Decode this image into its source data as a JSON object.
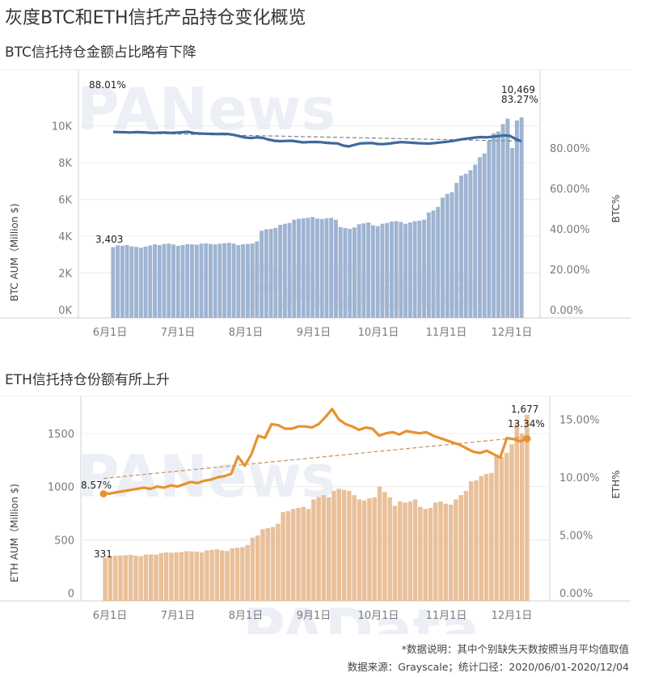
{
  "page": {
    "title": "灰度BTC和ETH信托产品持仓变化概览",
    "footer_note": "*数据说明：其中个别缺失天数按照当月平均值取值",
    "footer_source": "数据来源：Grayscale；统计口径：2020/06/01-2020/12/04",
    "watermarks": [
      "PANews",
      "PAData"
    ]
  },
  "colors": {
    "btc_bar": "#9fb4d2",
    "btc_line": "#3d6a9c",
    "eth_bar": "#e9c09a",
    "eth_line": "#e8922f",
    "grid": "#ececec",
    "axis": "#d0d0d0"
  },
  "chart_data": [
    {
      "type": "bar+line",
      "title": "BTC信托持仓金额占比略有下降",
      "xlabel": "",
      "ylabel": "BTC AUM（Million $)",
      "ylabel_right": "BTC%",
      "x_ticks": [
        "6月1日",
        "7月1日",
        "8月1日",
        "9月1日",
        "10月1日",
        "11月1日",
        "12月1日"
      ],
      "y_ticks": [
        "0K",
        "2K",
        "4K",
        "6K",
        "8K",
        "10K"
      ],
      "y_ticks_right": [
        "0.00%",
        "20.00%",
        "40.00%",
        "60.00%",
        "80.00%"
      ],
      "ylim": [
        0,
        11000
      ],
      "ylim_right": [
        0,
        100
      ],
      "annotations": {
        "start_aum": "3,403",
        "end_aum": "10,469",
        "start_pct": "88.01%",
        "end_pct": "83.27%"
      },
      "series": [
        {
          "name": "BTC AUM (Million $)",
          "kind": "bar",
          "values": [
            3403,
            3500,
            3480,
            3520,
            3450,
            3420,
            3380,
            3440,
            3500,
            3560,
            3520,
            3580,
            3600,
            3550,
            3480,
            3520,
            3570,
            3560,
            3540,
            3600,
            3610,
            3580,
            3560,
            3590,
            3620,
            3640,
            3600,
            3520,
            3560,
            3580,
            3600,
            3720,
            4300,
            4380,
            4400,
            4450,
            4620,
            4680,
            4720,
            4900,
            4950,
            4980,
            5000,
            5050,
            4960,
            4940,
            4980,
            5000,
            4900,
            4500,
            4450,
            4400,
            4480,
            4650,
            4700,
            4750,
            4600,
            4550,
            4680,
            4720,
            4800,
            4820,
            4780,
            4680,
            4750,
            4820,
            4850,
            4900,
            5300,
            5400,
            5600,
            6100,
            6300,
            6400,
            6900,
            7300,
            7400,
            7600,
            7900,
            8300,
            8500,
            9200,
            9600,
            9700,
            10100,
            10400,
            8800,
            10300,
            10469
          ]
        },
        {
          "name": "BTC%",
          "kind": "line",
          "values": [
            88.01,
            87.9,
            87.8,
            87.7,
            87.9,
            87.8,
            87.6,
            87.5,
            87.6,
            87.7,
            87.5,
            87.6,
            87.8,
            88.0,
            87.4,
            87.2,
            87.1,
            87.0,
            86.9,
            87.0,
            86.9,
            86.5,
            85.8,
            85.2,
            84.9,
            85.3,
            85.0,
            84.2,
            83.6,
            83.4,
            83.5,
            83.6,
            83.2,
            82.8,
            82.9,
            83.0,
            82.9,
            82.6,
            82.4,
            82.3,
            81.2,
            80.8,
            81.6,
            82.3,
            82.4,
            82.5,
            82.0,
            81.9,
            82.2,
            82.6,
            82.9,
            82.8,
            82.6,
            82.4,
            82.3,
            82.2,
            82.5,
            82.8,
            83.1,
            83.5,
            84.0,
            84.5,
            84.8,
            85.2,
            85.4,
            85.3,
            85.6,
            85.9,
            86.3,
            86.0,
            84.5,
            83.27
          ]
        },
        {
          "name": "BTC% trend",
          "kind": "trendline",
          "values": [
            87.6,
            83.4
          ]
        }
      ]
    },
    {
      "type": "bar+line",
      "title": "ETH信托持仓份额有所上升",
      "xlabel": "",
      "ylabel": "ETH AUM（Million $)",
      "ylabel_right": "ETH%",
      "x_ticks": [
        "6月1日",
        "7月1日",
        "8月1日",
        "9月1日",
        "10月1日",
        "11月1日",
        "12月1日"
      ],
      "y_ticks": [
        "0",
        "500",
        "1000",
        "1500"
      ],
      "y_ticks_right": [
        "0.00%",
        "5.00%",
        "10.00%",
        "15.00%"
      ],
      "ylim": [
        0,
        1850
      ],
      "ylim_right": [
        0,
        17
      ],
      "annotations": {
        "start_aum": "331",
        "end_aum": "1,677",
        "start_pct": "8.57%",
        "end_pct": "13.34%"
      },
      "series": [
        {
          "name": "ETH AUM (Million $)",
          "kind": "bar",
          "values": [
            331,
            345,
            350,
            352,
            355,
            358,
            350,
            345,
            360,
            362,
            360,
            375,
            380,
            378,
            380,
            385,
            392,
            390,
            388,
            380,
            400,
            405,
            410,
            400,
            395,
            420,
            425,
            430,
            450,
            520,
            540,
            600,
            610,
            620,
            650,
            760,
            770,
            790,
            800,
            810,
            790,
            880,
            900,
            920,
            900,
            960,
            980,
            970,
            960,
            920,
            880,
            870,
            890,
            900,
            1000,
            950,
            900,
            820,
            860,
            850,
            860,
            880,
            810,
            790,
            800,
            850,
            860,
            840,
            830,
            880,
            920,
            960,
            1050,
            1060,
            1100,
            1120,
            1130,
            1300,
            1280,
            1320,
            1400,
            1600,
            1500,
            1677
          ]
        },
        {
          "name": "ETH%",
          "kind": "line",
          "values": [
            8.57,
            8.6,
            8.7,
            8.8,
            8.9,
            9.0,
            9.1,
            9.0,
            9.2,
            9.1,
            9.3,
            9.2,
            9.4,
            9.6,
            9.5,
            9.7,
            9.8,
            10.0,
            10.1,
            10.3,
            11.8,
            11.0,
            12.0,
            13.6,
            13.4,
            14.6,
            14.5,
            14.2,
            14.2,
            14.4,
            14.4,
            14.3,
            14.6,
            15.2,
            15.9,
            15.0,
            14.6,
            14.4,
            14.1,
            14.3,
            14.2,
            13.6,
            13.8,
            13.9,
            13.7,
            14.0,
            13.9,
            13.8,
            13.9,
            13.6,
            13.4,
            13.2,
            13.0,
            12.8,
            12.5,
            12.2,
            12.1,
            12.3,
            12.0,
            11.7,
            13.4,
            13.3,
            13.1,
            13.34
          ]
        },
        {
          "name": "ETH% trend",
          "kind": "trendline",
          "values": [
            9.9,
            13.5
          ]
        }
      ]
    }
  ]
}
